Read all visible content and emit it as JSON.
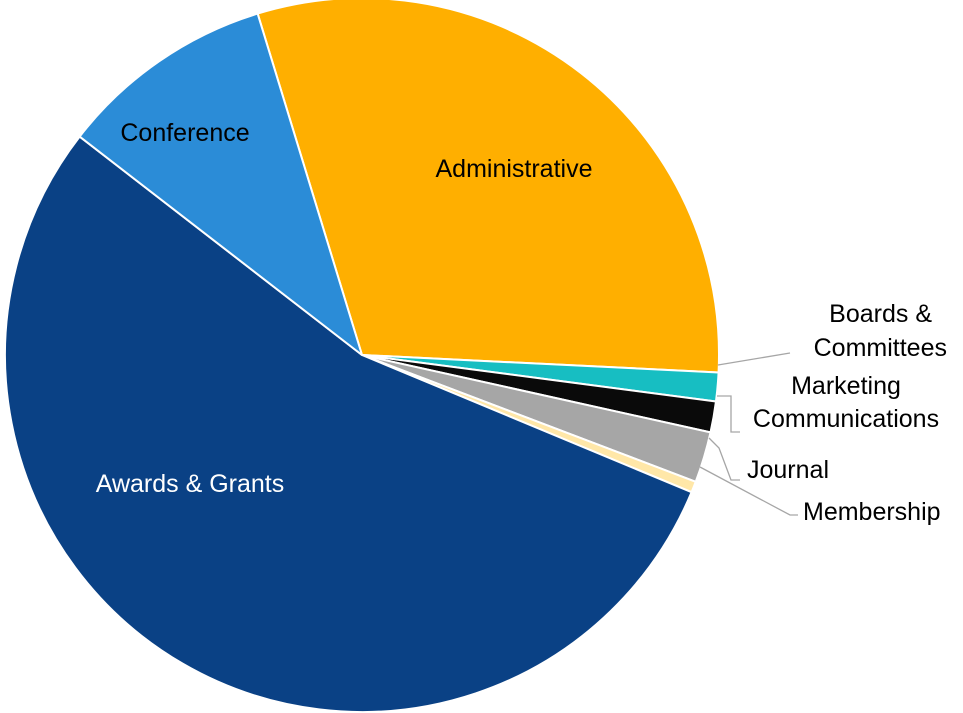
{
  "chart_data": {
    "type": "pie",
    "title": "",
    "slices": [
      {
        "label": "Administrative",
        "value": 30.5,
        "color": "#FFAF00"
      },
      {
        "label": "Boards & Committees",
        "value": 1.3,
        "color": "#17BEC2"
      },
      {
        "label": "Marketing Communications",
        "value": 1.4,
        "color": "#0A0A0A"
      },
      {
        "label": "Journal",
        "value": 2.3,
        "color": "#A6A6A6"
      },
      {
        "label": "Membership",
        "value": 0.5,
        "color": "#FFE7A8"
      },
      {
        "label": "Awards & Grants",
        "value": 54.2,
        "color": "#0A4185"
      },
      {
        "label": "Conference",
        "value": 9.8,
        "color": "#2B8CD7"
      }
    ],
    "start_angle_deg": -17,
    "direction": "clockwise",
    "data_labels": "category names",
    "legend": "none"
  }
}
